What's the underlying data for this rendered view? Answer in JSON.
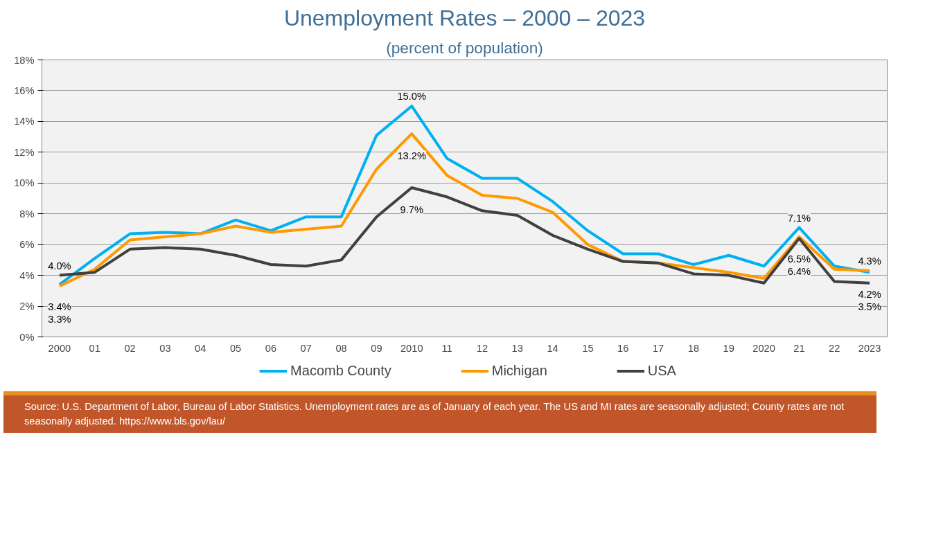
{
  "chart_data": {
    "type": "line",
    "title": "Unemployment Rates – 2000 – 2023",
    "subtitle": "(percent of population)",
    "categories": [
      "2000",
      "01",
      "02",
      "03",
      "04",
      "05",
      "06",
      "07",
      "08",
      "09",
      "2010",
      "11",
      "12",
      "13",
      "14",
      "15",
      "16",
      "17",
      "18",
      "19",
      "2020",
      "21",
      "22",
      "2023"
    ],
    "series": [
      {
        "name": "Macomb County",
        "color": "#00b0f0",
        "values": [
          3.4,
          5.1,
          6.7,
          6.8,
          6.7,
          7.6,
          6.9,
          7.8,
          7.8,
          13.1,
          15.0,
          11.6,
          10.3,
          10.3,
          8.8,
          6.9,
          5.4,
          5.4,
          4.7,
          5.3,
          4.6,
          7.1,
          4.6,
          4.2
        ],
        "value_labels": [
          "3.4%",
          null,
          null,
          null,
          null,
          null,
          null,
          null,
          null,
          null,
          "15.0%",
          null,
          null,
          null,
          null,
          null,
          null,
          null,
          null,
          null,
          null,
          "7.1%",
          null,
          "4.2%"
        ]
      },
      {
        "name": "Michigan",
        "color": "#ff9900",
        "values": [
          3.3,
          4.4,
          6.3,
          6.5,
          6.7,
          7.2,
          6.8,
          7.0,
          7.2,
          10.9,
          13.2,
          10.5,
          9.2,
          9.0,
          8.1,
          6.0,
          4.9,
          4.8,
          4.5,
          4.2,
          3.8,
          6.5,
          4.4,
          4.3
        ],
        "value_labels": [
          "3.3%",
          null,
          null,
          null,
          null,
          null,
          null,
          null,
          null,
          null,
          "13.2%",
          null,
          null,
          null,
          null,
          null,
          null,
          null,
          null,
          null,
          null,
          "6.5%",
          null,
          "4.3%"
        ]
      },
      {
        "name": "USA",
        "color": "#404040",
        "values": [
          4.0,
          4.2,
          5.7,
          5.8,
          5.7,
          5.3,
          4.7,
          4.6,
          5.0,
          7.8,
          9.7,
          9.1,
          8.2,
          7.9,
          6.6,
          5.7,
          4.9,
          4.8,
          4.1,
          4.0,
          3.5,
          6.4,
          3.6,
          3.5
        ],
        "value_labels": [
          "4.0%",
          null,
          null,
          null,
          null,
          null,
          null,
          null,
          null,
          null,
          "9.7%",
          null,
          null,
          null,
          null,
          null,
          null,
          null,
          null,
          null,
          null,
          "6.4%",
          null,
          "3.5%"
        ]
      }
    ],
    "ylim": [
      0,
      18
    ],
    "yticks": [
      {
        "value": 0,
        "label": "0%"
      },
      {
        "value": 2,
        "label": "2%"
      },
      {
        "value": 4,
        "label": "4%"
      },
      {
        "value": 6,
        "label": "6%"
      },
      {
        "value": 8,
        "label": "8%"
      },
      {
        "value": 10,
        "label": "10%"
      },
      {
        "value": 12,
        "label": "12%"
      },
      {
        "value": 14,
        "label": "14%"
      },
      {
        "value": 16,
        "label": "16%"
      },
      {
        "value": 18,
        "label": "18%"
      }
    ],
    "grid": "y",
    "legend": "bottom",
    "marker": "none",
    "line_style": "solid",
    "annotations": [
      "Source: U.S. Department of Labor, Bureau of Labor Statistics. Unemployment rates are as of January of each year.  The US and MI rates are seasonally adjusted; County rates are not seasonally adjusted.  https://www.bls.gov/lau/"
    ]
  }
}
